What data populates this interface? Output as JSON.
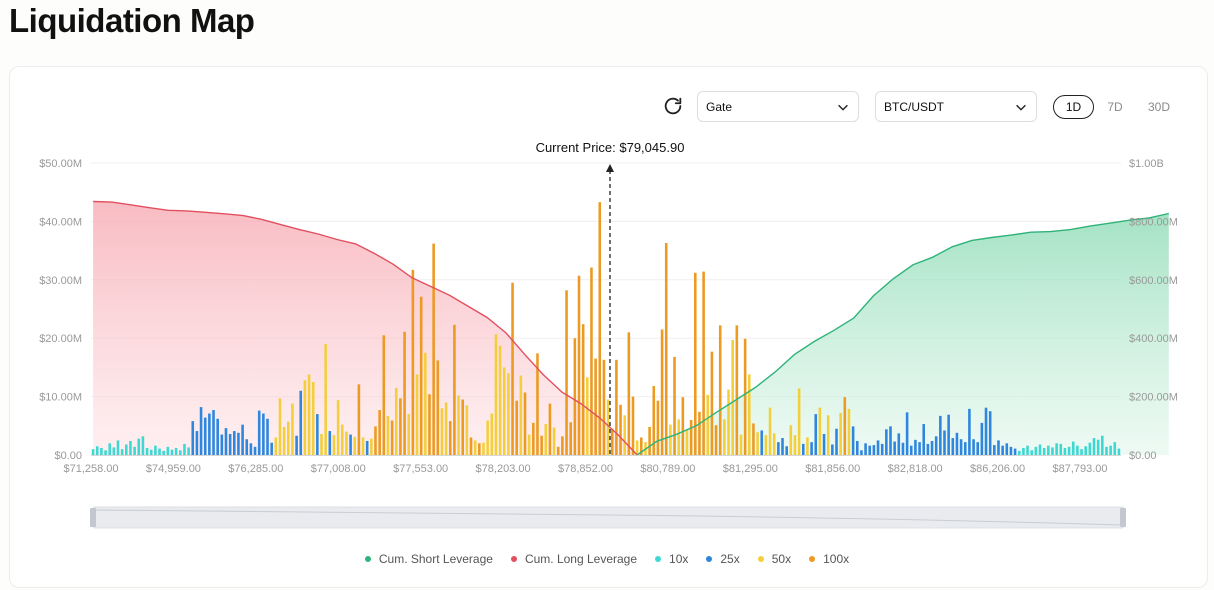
{
  "page": {
    "title": "Liquidation Map"
  },
  "controls": {
    "exchange": "Gate",
    "pair": "BTC/USDT",
    "timeframes": [
      "1D",
      "7D",
      "30D"
    ],
    "active_timeframe": "1D"
  },
  "icons": {
    "refresh": "refresh-icon",
    "dropdown": "chevron-down-icon"
  },
  "colors": {
    "short_cum": "#2fb37a",
    "long_cum": "#e2505f",
    "lev10": "#3ed8d2",
    "lev25": "#2e86de",
    "lev50": "#f4cf3c",
    "lev100": "#ec9a22"
  },
  "chart_data": {
    "type": "bar",
    "current_price_label": "Current Price: $79,045.90",
    "current_price": 79045.9,
    "x_tick_labels": [
      "$71,258.00",
      "$74,959.00",
      "$76,285.00",
      "$77,008.00",
      "$77,553.00",
      "$78,203.00",
      "$78,852.00",
      "$80,789.00",
      "$81,295.00",
      "$81,856.00",
      "$82,818.00",
      "$86,206.00",
      "$87,793.00"
    ],
    "y_left_ticks": [
      "$0.00",
      "$10.00M",
      "$20.00M",
      "$30.00M",
      "$40.00M",
      "$50.00M"
    ],
    "y_right_ticks": [
      "$0.00",
      "$200.00M",
      "$400.00M",
      "$600.00M",
      "$800.00M",
      "$1.00B"
    ],
    "y_left_range": [
      0,
      50
    ],
    "y_left_unit": "M",
    "y_right_range": [
      0,
      1000
    ],
    "y_right_unit": "M",
    "legend": [
      "Cum. Short Leverage",
      "Cum. Long Leverage",
      "10x",
      "25x",
      "50x",
      "100x"
    ],
    "bars": [
      [
        1.0,
        "10x"
      ],
      [
        1.5,
        "10x"
      ],
      [
        1.2,
        "10x"
      ],
      [
        0.8,
        "10x"
      ],
      [
        2.0,
        "10x"
      ],
      [
        1.3,
        "10x"
      ],
      [
        2.5,
        "10x"
      ],
      [
        1.0,
        "10x"
      ],
      [
        1.8,
        "10x"
      ],
      [
        2.4,
        "10x"
      ],
      [
        1.4,
        "10x"
      ],
      [
        2.8,
        "10x"
      ],
      [
        3.2,
        "10x"
      ],
      [
        1.2,
        "10x"
      ],
      [
        0.9,
        "10x"
      ],
      [
        1.6,
        "10x"
      ],
      [
        1.1,
        "10x"
      ],
      [
        0.7,
        "10x"
      ],
      [
        1.4,
        "10x"
      ],
      [
        0.9,
        "10x"
      ],
      [
        1.2,
        "10x"
      ],
      [
        0.8,
        "10x"
      ],
      [
        1.9,
        "10x"
      ],
      [
        1.3,
        "10x"
      ],
      [
        5.8,
        "25x"
      ],
      [
        4.1,
        "25x"
      ],
      [
        8.2,
        "25x"
      ],
      [
        6.4,
        "25x"
      ],
      [
        7.1,
        "25x"
      ],
      [
        7.7,
        "25x"
      ],
      [
        6.2,
        "25x"
      ],
      [
        3.5,
        "25x"
      ],
      [
        4.6,
        "25x"
      ],
      [
        3.6,
        "25x"
      ],
      [
        4.1,
        "25x"
      ],
      [
        3.8,
        "25x"
      ],
      [
        5.2,
        "25x"
      ],
      [
        2.7,
        "25x"
      ],
      [
        2.0,
        "25x"
      ],
      [
        1.4,
        "25x"
      ],
      [
        7.6,
        "25x"
      ],
      [
        7.1,
        "25x"
      ],
      [
        6.2,
        "25x"
      ],
      [
        2.1,
        "25x"
      ],
      [
        3.0,
        "50x"
      ],
      [
        9.7,
        "50x"
      ],
      [
        4.8,
        "50x"
      ],
      [
        5.7,
        "50x"
      ],
      [
        8.8,
        "50x"
      ],
      [
        3.3,
        "25x"
      ],
      [
        11.0,
        "25x"
      ],
      [
        12.8,
        "50x"
      ],
      [
        13.8,
        "50x"
      ],
      [
        12.5,
        "50x"
      ],
      [
        7.0,
        "25x"
      ],
      [
        3.6,
        "50x"
      ],
      [
        19.0,
        "50x"
      ],
      [
        4.1,
        "25x"
      ],
      [
        3.4,
        "50x"
      ],
      [
        9.4,
        "50x"
      ],
      [
        5.2,
        "50x"
      ],
      [
        4.0,
        "50x"
      ],
      [
        3.5,
        "25x"
      ],
      [
        3.1,
        "50x"
      ],
      [
        12.1,
        "100x"
      ],
      [
        3.0,
        "50x"
      ],
      [
        2.4,
        "25x"
      ],
      [
        2.8,
        "50x"
      ],
      [
        4.9,
        "100x"
      ],
      [
        7.7,
        "100x"
      ],
      [
        20.5,
        "100x"
      ],
      [
        6.7,
        "50x"
      ],
      [
        5.9,
        "100x"
      ],
      [
        11.5,
        "50x"
      ],
      [
        9.7,
        "100x"
      ],
      [
        21.1,
        "100x"
      ],
      [
        7.0,
        "50x"
      ],
      [
        31.7,
        "100x"
      ],
      [
        13.8,
        "50x"
      ],
      [
        27.1,
        "100x"
      ],
      [
        17.5,
        "50x"
      ],
      [
        10.4,
        "100x"
      ],
      [
        36.2,
        "100x"
      ],
      [
        16.2,
        "100x"
      ],
      [
        8.0,
        "50x"
      ],
      [
        9.0,
        "50x"
      ],
      [
        5.8,
        "100x"
      ],
      [
        22.3,
        "100x"
      ],
      [
        10.2,
        "50x"
      ],
      [
        9.5,
        "100x"
      ],
      [
        8.5,
        "50x"
      ],
      [
        3.0,
        "100x"
      ],
      [
        2.5,
        "50x"
      ],
      [
        2.0,
        "100x"
      ],
      [
        2.1,
        "50x"
      ],
      [
        5.9,
        "50x"
      ],
      [
        7.1,
        "50x"
      ],
      [
        20.7,
        "50x"
      ],
      [
        18.7,
        "50x"
      ],
      [
        15.0,
        "50x"
      ],
      [
        14.0,
        "50x"
      ],
      [
        29.5,
        "100x"
      ],
      [
        9.3,
        "100x"
      ],
      [
        13.6,
        "50x"
      ],
      [
        10.7,
        "100x"
      ],
      [
        3.5,
        "50x"
      ],
      [
        5.5,
        "100x"
      ],
      [
        17.4,
        "100x"
      ],
      [
        3.3,
        "100x"
      ],
      [
        5.3,
        "50x"
      ],
      [
        8.8,
        "100x"
      ],
      [
        4.7,
        "50x"
      ],
      [
        1.4,
        "100x"
      ],
      [
        3.2,
        "100x"
      ],
      [
        28.2,
        "100x"
      ],
      [
        5.6,
        "100x"
      ],
      [
        20.0,
        "100x"
      ],
      [
        30.7,
        "100x"
      ],
      [
        22.4,
        "100x"
      ],
      [
        13.3,
        "50x"
      ],
      [
        32.1,
        "100x"
      ],
      [
        16.5,
        "100x"
      ],
      [
        43.3,
        "100x"
      ],
      [
        16.3,
        "100x"
      ],
      [
        9.5,
        "50x"
      ],
      [
        4.5,
        "100x"
      ],
      [
        16.3,
        "100x"
      ],
      [
        8.6,
        "100x"
      ],
      [
        6.8,
        "50x"
      ],
      [
        21.0,
        "100x"
      ],
      [
        10.0,
        "100x"
      ],
      [
        2.5,
        "50x"
      ],
      [
        3.0,
        "100x"
      ],
      [
        2.2,
        "50x"
      ],
      [
        4.8,
        "100x"
      ],
      [
        11.8,
        "100x"
      ],
      [
        9.3,
        "100x"
      ],
      [
        21.5,
        "100x"
      ],
      [
        36.3,
        "100x"
      ],
      [
        5.2,
        "50x"
      ],
      [
        16.8,
        "100x"
      ],
      [
        6.1,
        "50x"
      ],
      [
        9.9,
        "100x"
      ],
      [
        4.3,
        "50x"
      ],
      [
        6.0,
        "100x"
      ],
      [
        31.2,
        "100x"
      ],
      [
        7.4,
        "100x"
      ],
      [
        31.4,
        "100x"
      ],
      [
        10.3,
        "50x"
      ],
      [
        17.7,
        "100x"
      ],
      [
        5.1,
        "100x"
      ],
      [
        22.2,
        "100x"
      ],
      [
        6.1,
        "50x"
      ],
      [
        11.2,
        "50x"
      ],
      [
        19.7,
        "50x"
      ],
      [
        22.2,
        "100x"
      ],
      [
        3.5,
        "50x"
      ],
      [
        19.9,
        "100x"
      ],
      [
        13.8,
        "50x"
      ],
      [
        5.4,
        "100x"
      ],
      [
        3.9,
        "50x"
      ],
      [
        4.2,
        "25x"
      ],
      [
        3.4,
        "50x"
      ],
      [
        8.1,
        "50x"
      ],
      [
        3.7,
        "50x"
      ],
      [
        2.2,
        "25x"
      ],
      [
        2.9,
        "25x"
      ],
      [
        1.5,
        "25x"
      ],
      [
        5.1,
        "50x"
      ],
      [
        3.4,
        "50x"
      ],
      [
        11.4,
        "50x"
      ],
      [
        1.9,
        "25x"
      ],
      [
        3.0,
        "50x"
      ],
      [
        2.2,
        "25x"
      ],
      [
        7.0,
        "25x"
      ],
      [
        8.1,
        "50x"
      ],
      [
        3.6,
        "25x"
      ],
      [
        6.8,
        "50x"
      ],
      [
        1.8,
        "25x"
      ],
      [
        4.5,
        "25x"
      ],
      [
        7.2,
        "50x"
      ],
      [
        9.9,
        "100x"
      ],
      [
        7.9,
        "50x"
      ],
      [
        4.9,
        "25x"
      ],
      [
        2.4,
        "25x"
      ],
      [
        0.8,
        "25x"
      ],
      [
        2.0,
        "25x"
      ],
      [
        1.6,
        "25x"
      ],
      [
        1.7,
        "25x"
      ],
      [
        2.5,
        "25x"
      ],
      [
        1.9,
        "25x"
      ],
      [
        4.4,
        "25x"
      ],
      [
        4.9,
        "25x"
      ],
      [
        2.3,
        "25x"
      ],
      [
        3.7,
        "25x"
      ],
      [
        2.1,
        "25x"
      ],
      [
        7.3,
        "25x"
      ],
      [
        1.6,
        "25x"
      ],
      [
        2.6,
        "25x"
      ],
      [
        2.2,
        "25x"
      ],
      [
        5.3,
        "25x"
      ],
      [
        1.9,
        "25x"
      ],
      [
        2.4,
        "25x"
      ],
      [
        3.2,
        "25x"
      ],
      [
        6.7,
        "25x"
      ],
      [
        4.2,
        "25x"
      ],
      [
        6.9,
        "25x"
      ],
      [
        2.9,
        "25x"
      ],
      [
        3.8,
        "25x"
      ],
      [
        2.7,
        "25x"
      ],
      [
        2.2,
        "25x"
      ],
      [
        7.9,
        "25x"
      ],
      [
        2.7,
        "25x"
      ],
      [
        2.2,
        "25x"
      ],
      [
        5.5,
        "25x"
      ],
      [
        8.1,
        "25x"
      ],
      [
        7.5,
        "25x"
      ],
      [
        1.7,
        "25x"
      ],
      [
        2.5,
        "25x"
      ],
      [
        1.6,
        "25x"
      ],
      [
        2.0,
        "25x"
      ],
      [
        1.4,
        "25x"
      ],
      [
        1.1,
        "25x"
      ],
      [
        0.7,
        "10x"
      ],
      [
        1.2,
        "10x"
      ],
      [
        1.6,
        "10x"
      ],
      [
        0.8,
        "10x"
      ],
      [
        1.4,
        "10x"
      ],
      [
        1.8,
        "10x"
      ],
      [
        1.2,
        "10x"
      ],
      [
        1.6,
        "10x"
      ],
      [
        1.3,
        "10x"
      ],
      [
        2.0,
        "10x"
      ],
      [
        1.9,
        "10x"
      ],
      [
        1.2,
        "10x"
      ],
      [
        1.4,
        "10x"
      ],
      [
        2.3,
        "10x"
      ],
      [
        1.6,
        "10x"
      ],
      [
        1.0,
        "10x"
      ],
      [
        1.5,
        "10x"
      ],
      [
        2.1,
        "10x"
      ],
      [
        2.9,
        "10x"
      ],
      [
        2.6,
        "10x"
      ],
      [
        3.3,
        "10x"
      ],
      [
        1.4,
        "10x"
      ],
      [
        1.6,
        "10x"
      ],
      [
        2.2,
        "10x"
      ],
      [
        1.1,
        "10x"
      ]
    ],
    "cum_long": {
      "start_x_index": 0,
      "end_x_index": 131,
      "values": [
        868,
        866,
        857,
        847,
        838,
        836,
        831,
        826,
        820,
        807,
        789,
        772,
        757,
        738,
        723,
        690,
        653,
        607,
        577,
        547,
        509,
        471,
        419,
        345,
        275,
        215,
        176,
        127,
        68,
        0
      ]
    },
    "cum_short": {
      "start_x_index": 131,
      "end_x_index": 259,
      "values": [
        0,
        47,
        71,
        100,
        145,
        188,
        231,
        284,
        345,
        389,
        427,
        469,
        545,
        603,
        651,
        677,
        713,
        735,
        745,
        753,
        763,
        765,
        772,
        784,
        794,
        804,
        812,
        827
      ]
    }
  }
}
